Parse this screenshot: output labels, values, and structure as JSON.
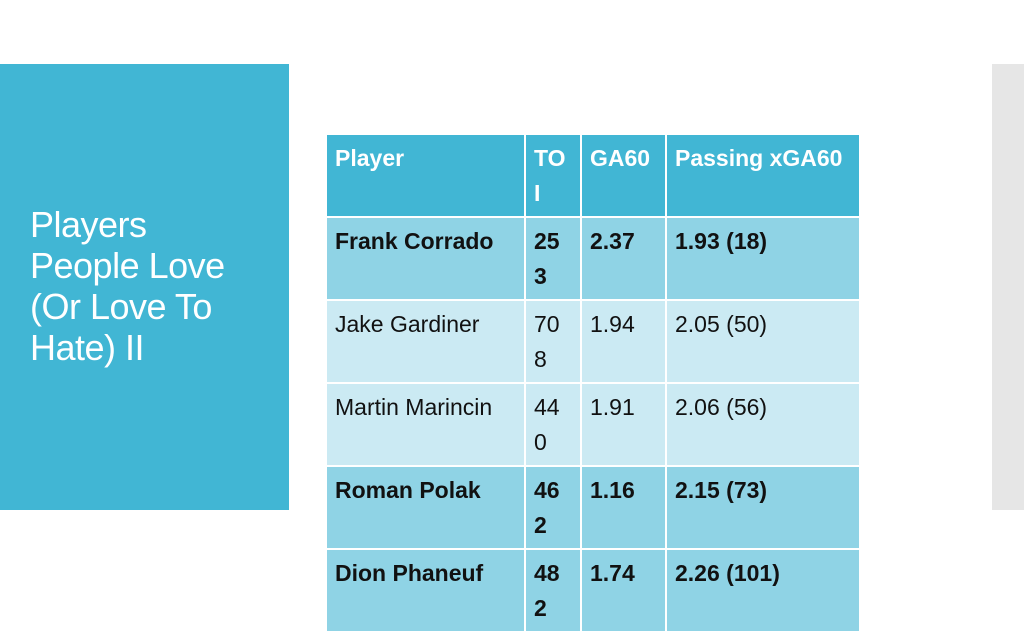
{
  "slide": {
    "title_lines": [
      "Players",
      "People Love",
      "(Or Love To",
      "Hate) II"
    ]
  },
  "table": {
    "columns": [
      "Player",
      "TOI",
      "GA60",
      "Passing xGA60"
    ],
    "rows": [
      [
        "Frank Corrado",
        "253",
        "2.37",
        "1.93 (18)"
      ],
      [
        "Jake Gardiner",
        "708",
        "1.94",
        "2.05 (50)"
      ],
      [
        "Martin Marincin",
        "440",
        "1.91",
        "2.06 (56)"
      ],
      [
        "Roman Polak",
        "462",
        "1.16",
        "2.15 (73)"
      ],
      [
        "Dion Phaneuf",
        "482",
        "1.74",
        "2.26 (101)"
      ]
    ]
  }
}
